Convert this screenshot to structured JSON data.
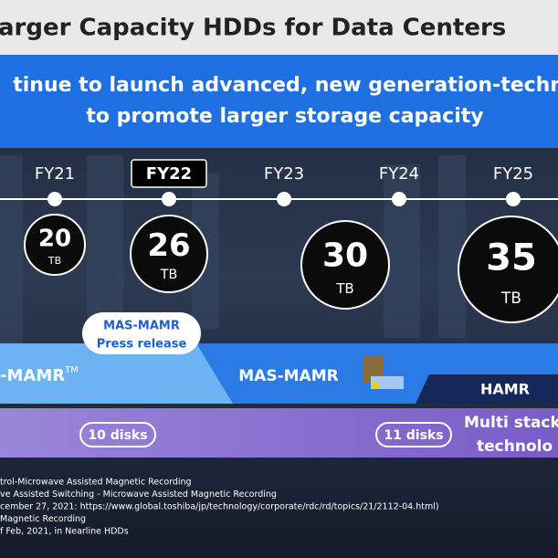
{
  "header": {
    "title": "arger Capacity HDDs for Data Centers"
  },
  "banner": {
    "lines": [
      "tinue to launch advanced, new generation-technolo",
      "to promote larger storage capacity"
    ]
  },
  "timeline": {
    "years": [
      "FY21",
      "FY22",
      "FY23",
      "FY24",
      "FY25"
    ],
    "capacities": [
      {
        "value": "20",
        "unit": "TB"
      },
      {
        "value": "26",
        "unit": "TB"
      },
      {
        "value": "30",
        "unit": "TB"
      },
      {
        "value": "35",
        "unit": "TB"
      }
    ]
  },
  "press_release": {
    "lines": [
      "MAS-MAMR",
      "Press release"
    ]
  },
  "technologies": {
    "first": "-MAMR",
    "first_mark": "TM",
    "second": "MAS-MAMR",
    "third": "HAMR"
  },
  "disks": [
    "10 disks",
    "11 disks"
  ],
  "multi_stack": [
    "Multi stack",
    "technolo"
  ],
  "footnotes": [
    "trol-Microwave Assisted Magnetic Recording",
    "ve Assisted Switching - Microwave Assisted Magnetic Recording",
    "cember 27, 2021: https://www.global.toshiba/jp/technology/corporate/rdc/rd/topics/21/2112-04.html)",
    "Magnetic Recording",
    "f Feb, 2021, in Nearline HDDs"
  ]
}
